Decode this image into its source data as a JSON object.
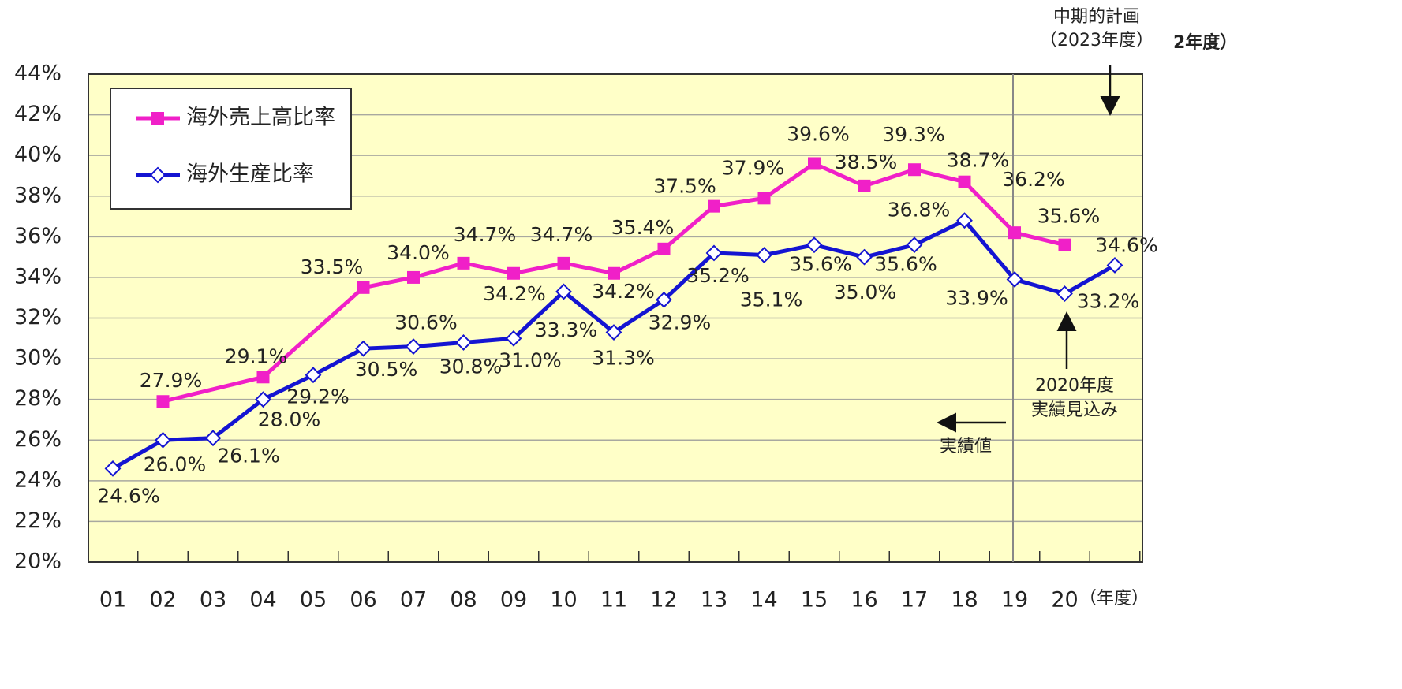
{
  "chart_data": {
    "type": "line",
    "categories": [
      "01",
      "02",
      "03",
      "04",
      "05",
      "06",
      "07",
      "08",
      "09",
      "10",
      "11",
      "12",
      "13",
      "14",
      "15",
      "16",
      "17",
      "18",
      "19",
      "20",
      null
    ],
    "x_label": "（年度）",
    "ylim": [
      20,
      44
    ],
    "yticks": [
      {
        "value": 20,
        "label": "20%"
      },
      {
        "value": 22,
        "label": "22%"
      },
      {
        "value": 24,
        "label": "24%"
      },
      {
        "value": 26,
        "label": "26%"
      },
      {
        "value": 28,
        "label": "28%"
      },
      {
        "value": 30,
        "label": "30%"
      },
      {
        "value": 32,
        "label": "32%"
      },
      {
        "value": 34,
        "label": "34%"
      },
      {
        "value": 36,
        "label": "36%"
      },
      {
        "value": 38,
        "label": "38%"
      },
      {
        "value": 40,
        "label": "40%"
      },
      {
        "value": 42,
        "label": "42%"
      },
      {
        "value": 44,
        "label": "44%"
      }
    ],
    "grid": true,
    "background": "#ffffc8",
    "series": [
      {
        "name": "海外売上高比率",
        "color": "#f020c8",
        "marker": "square",
        "connect_gaps": true,
        "values": [
          null,
          27.9,
          null,
          29.1,
          null,
          33.5,
          34.0,
          34.7,
          34.2,
          34.7,
          34.2,
          35.4,
          37.5,
          37.9,
          39.6,
          38.5,
          39.3,
          38.7,
          36.2,
          35.6,
          null
        ],
        "value_labels": [
          null,
          "27.9%",
          null,
          "29.1%",
          null,
          "33.5%",
          "34.0%",
          "34.7%",
          "34.2%",
          "34.7%",
          "34.2%",
          "35.4%",
          "37.5%",
          "37.9%",
          "39.6%",
          "38.5%",
          "39.3%",
          "38.7%",
          "36.2%",
          "35.6%",
          null
        ]
      },
      {
        "name": "海外生産比率",
        "color": "#1414d2",
        "marker": "diamond-open",
        "values": [
          24.6,
          26.0,
          26.1,
          28.0,
          29.2,
          30.5,
          30.6,
          30.8,
          31.0,
          33.3,
          31.3,
          32.9,
          35.2,
          35.1,
          35.6,
          35.0,
          35.6,
          36.8,
          33.9,
          33.2,
          34.6
        ],
        "value_labels": [
          "24.6%",
          "26.0%",
          "26.1%",
          "28.0%",
          "29.2%",
          "30.5%",
          "30.6%",
          "30.8%",
          "31.0%",
          "33.3%",
          "31.3%",
          "32.9%",
          "35.2%",
          "35.1%",
          "35.6%",
          "35.0%",
          "35.6%",
          "36.8%",
          "33.9%",
          "33.2%",
          "34.6%"
        ]
      }
    ],
    "annotations": [
      "中期的計画",
      "（2023年度）",
      "2年度）",
      "2020年度",
      "実績見込み",
      "実績値"
    ]
  }
}
